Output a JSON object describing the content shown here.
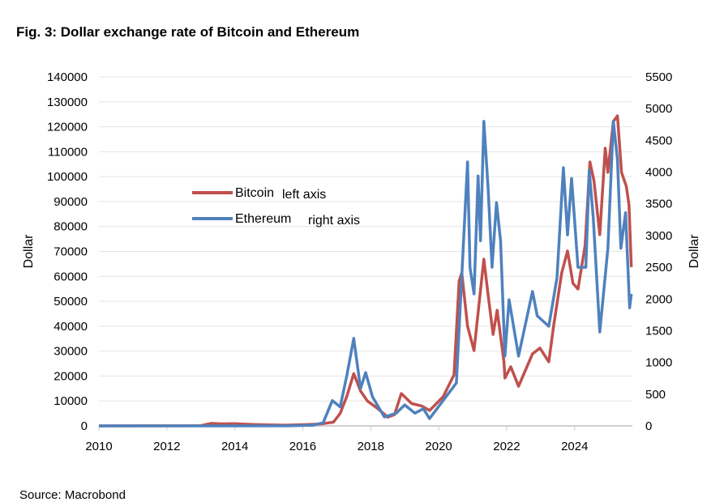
{
  "chart_data": {
    "type": "line",
    "title": "Fig. 3: Dollar exchange rate of Bitcoin and Ethereum",
    "source": "Source: Macrobond",
    "ylabel_left": "Dollar",
    "ylabel_right": "Dollar",
    "xlim": [
      2010,
      2025.7
    ],
    "ylim_left": [
      0,
      140000
    ],
    "ylim_right": [
      0,
      5500
    ],
    "grid": true,
    "x_ticks": [
      "2010",
      "2012",
      "2014",
      "2016",
      "2018",
      "2020",
      "2022",
      "2024"
    ],
    "y_ticks_left": [
      "0",
      "10000",
      "20000",
      "30000",
      "40000",
      "50000",
      "60000",
      "70000",
      "80000",
      "90000",
      "100000",
      "110000",
      "120000",
      "130000",
      "140000"
    ],
    "y_ticks_right": [
      "0",
      "500",
      "1000",
      "1500",
      "2000",
      "2500",
      "3000",
      "3500",
      "4000",
      "4500",
      "5000",
      "5500"
    ],
    "legend_placement": "upper-left-center",
    "series": [
      {
        "name": "Bitcoin",
        "axis_note": "left axis",
        "axis": "left",
        "color": "#c0504d",
        "x": [
          2010,
          2013.0,
          2013.3,
          2013.6,
          2014.0,
          2014.5,
          2015.0,
          2015.5,
          2016.0,
          2016.5,
          2016.9,
          2017.1,
          2017.3,
          2017.5,
          2017.7,
          2017.9,
          2018.2,
          2018.5,
          2018.7,
          2018.9,
          2019.2,
          2019.5,
          2019.73,
          2020.13,
          2020.45,
          2020.6,
          2020.68,
          2020.85,
          2021.04,
          2021.33,
          2021.45,
          2021.6,
          2021.72,
          2021.92,
          2021.95,
          2022.12,
          2022.35,
          2022.76,
          2022.98,
          2023.24,
          2023.38,
          2023.62,
          2023.79,
          2023.95,
          2024.1,
          2024.31,
          2024.45,
          2024.57,
          2024.74,
          2024.9,
          2024.98,
          2025.14,
          2025.26,
          2025.38,
          2025.52,
          2025.6,
          2025.67
        ],
        "values": [
          0,
          100,
          1000,
          800,
          900,
          600,
          400,
          300,
          500,
          700,
          1500,
          5000,
          12000,
          21000,
          14000,
          10000,
          7000,
          3500,
          4500,
          13000,
          9000,
          8000,
          6170,
          11700,
          20500,
          58100,
          61400,
          40000,
          30200,
          66900,
          52900,
          36700,
          46400,
          25700,
          19200,
          23700,
          15900,
          28900,
          31200,
          25700,
          40000,
          61400,
          70200,
          57200,
          54900,
          72400,
          105900,
          98400,
          76700,
          111400,
          101700,
          122100,
          124400,
          101700,
          96100,
          88700,
          63700
        ]
      },
      {
        "name": "Ethereum",
        "axis_note": "right axis",
        "axis": "right",
        "color": "#4f81bd",
        "x": [
          2010,
          2015.6,
          2016.3,
          2016.6,
          2016.87,
          2017.1,
          2017.3,
          2017.5,
          2017.7,
          2017.85,
          2018.05,
          2018.4,
          2018.75,
          2019.0,
          2019.3,
          2019.55,
          2019.73,
          2020.52,
          2020.85,
          2020.92,
          2021.04,
          2021.16,
          2021.23,
          2021.33,
          2021.45,
          2021.57,
          2021.7,
          2021.82,
          2021.95,
          2022.07,
          2022.35,
          2022.76,
          2022.9,
          2023.24,
          2023.48,
          2023.67,
          2023.79,
          2023.91,
          2024.1,
          2024.33,
          2024.43,
          2024.55,
          2024.74,
          2024.98,
          2025.14,
          2025.26,
          2025.36,
          2025.5,
          2025.62,
          2025.67
        ],
        "values": [
          0,
          1,
          10,
          50,
          400,
          300,
          800,
          1380,
          590,
          840,
          460,
          140,
          200,
          330,
          200,
          270,
          115,
          676,
          4160,
          2500,
          2080,
          3940,
          2920,
          4800,
          3780,
          2500,
          3520,
          2920,
          1100,
          1990,
          1100,
          2120,
          1735,
          1570,
          2335,
          4070,
          3010,
          3900,
          2500,
          2500,
          4030,
          3270,
          1480,
          2800,
          4800,
          4200,
          2800,
          3360,
          1860,
          2080
        ]
      }
    ]
  }
}
